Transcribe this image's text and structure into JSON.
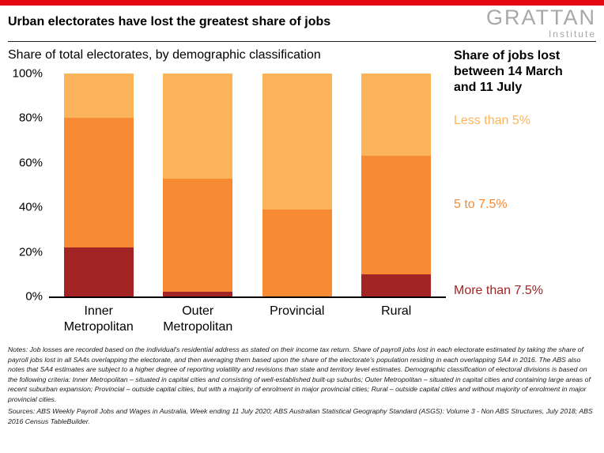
{
  "accent_color": "#e30613",
  "logo": {
    "main": "GRATTAN",
    "sub": "Institute"
  },
  "title": "Urban electorates have lost the greatest share of jobs",
  "subtitle": "Share of total electorates, by demographic classification",
  "legend": {
    "title": "Share of jobs lost between 14 March and 11 July",
    "items": [
      {
        "label": "Less than 5%",
        "color": "#fbb45c"
      },
      {
        "label": "5 to 7.5%",
        "color": "#f68b33"
      },
      {
        "label": "More than 7.5%",
        "color": "#a22425"
      }
    ]
  },
  "chart_data": {
    "type": "bar",
    "stacked": true,
    "title": "Share of total electorates, by demographic classification",
    "categories": [
      "Inner Metropolitan",
      "Outer Metropolitan",
      "Provincial",
      "Rural"
    ],
    "series": [
      {
        "name": "More than 7.5%",
        "color": "#a22425",
        "values": [
          22,
          2,
          0,
          10
        ]
      },
      {
        "name": "5 to 7.5%",
        "color": "#f68b33",
        "values": [
          58,
          51,
          39,
          53
        ]
      },
      {
        "name": "Less than 5%",
        "color": "#fbb45c",
        "values": [
          20,
          47,
          61,
          37
        ]
      }
    ],
    "xlabel": "",
    "ylabel": "",
    "ylim": [
      0,
      100
    ],
    "yticks": [
      "0%",
      "20%",
      "40%",
      "60%",
      "80%",
      "100%"
    ],
    "grid": false,
    "legend_position": "right"
  },
  "notes": "Notes: Job losses are recorded based on the individual's residential address as stated on their income tax return. Share of payroll jobs lost in each electorate estimated by taking the share of payroll jobs lost in all SA4s overlapping the electorate, and then averaging them based upon the share of the electorate's population residing in each overlapping SA4 in 2016. The ABS also notes that SA4 estimates are subject to a higher degree of reporting volatility and revisions than state and territory level estimates. Demographic classification of electoral divisions is based on the following criteria: Inner Metropolitan – situated in capital cities and consisting of well-established built-up suburbs; Outer Metropolitan – situated in capital cities and containing large areas of recent suburban expansion; Provincial – outside capital cities, but with a majority of enrolment in major provincial cities; Rural – outside capital cities and without majority of enrolment in major provincial cities.",
  "sources": "Sources: ABS Weekly Payroll Jobs and Wages in Australia, Week ending 11 July 2020; ABS Australian Statistical Geography Standard (ASGS): Volume 3 - Non ABS Structures, July 2018; ABS 2016 Census TableBuilder."
}
